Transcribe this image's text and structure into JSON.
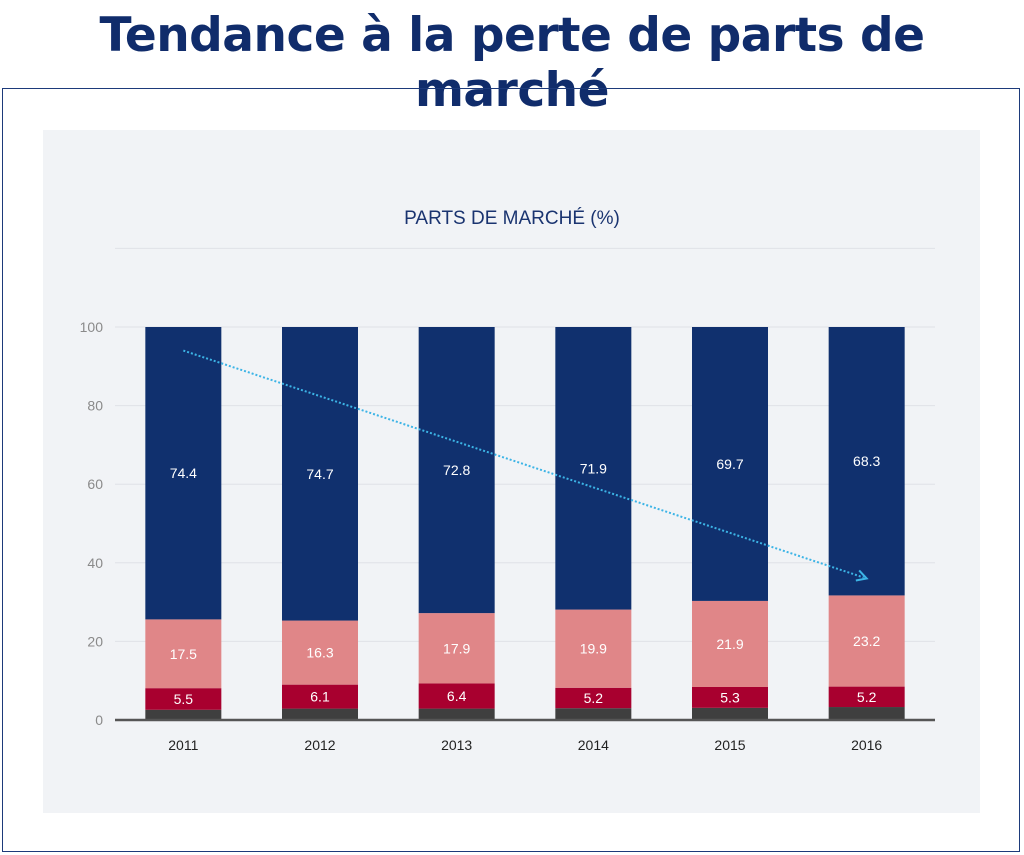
{
  "header": {
    "title": "Tendance à la perte de parts de marché"
  },
  "chart_data": {
    "type": "bar",
    "stacked": true,
    "title": "PARTS DE MARCHÉ (%)",
    "xlabel": "",
    "ylabel": "",
    "categories": [
      "2011",
      "2012",
      "2013",
      "2014",
      "2015",
      "2016"
    ],
    "ylim": [
      0,
      120
    ],
    "yticks": [
      "0",
      "20",
      "40",
      "60",
      "80",
      "100"
    ],
    "grid": true,
    "legend": "none",
    "series": [
      {
        "values": [
          2.6,
          2.9,
          2.9,
          3.0,
          3.1,
          3.3
        ],
        "color": "#3f3f3f",
        "labels": false
      },
      {
        "values": [
          5.5,
          6.1,
          6.4,
          5.2,
          5.3,
          5.2
        ],
        "color": "#a8002f",
        "labels": true
      },
      {
        "values": [
          17.5,
          16.3,
          17.9,
          19.9,
          21.9,
          23.2
        ],
        "color": "#e08688",
        "labels": true
      },
      {
        "values": [
          74.4,
          74.7,
          72.8,
          71.9,
          69.7,
          68.3
        ],
        "color": "#10306e",
        "labels": true
      }
    ],
    "annotations": [
      {
        "type": "trend-arrow",
        "from": [
          "2011",
          94
        ],
        "to": [
          "2016",
          36
        ],
        "color": "#3cb4e6",
        "style": "dotted"
      }
    ]
  }
}
